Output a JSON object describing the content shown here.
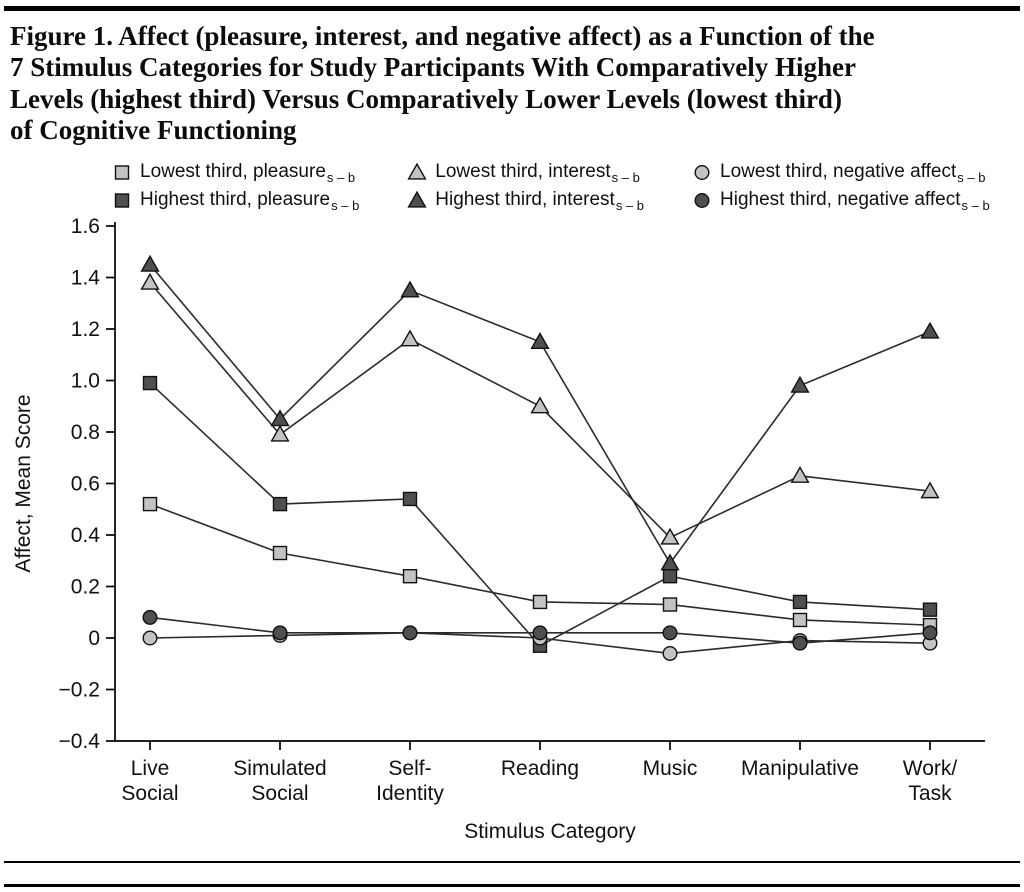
{
  "caption_lines": [
    "Figure 1. Affect (pleasure, interest, and negative affect) as a Function of the",
    "7 Stimulus Categories for Study Participants With Comparatively Higher",
    "Levels (highest third) Versus Comparatively Lower Levels (lowest third)",
    "of Cognitive Functioning"
  ],
  "chart_data": {
    "type": "line",
    "title": "Figure 1. Affect (pleasure, interest, and negative affect) as a Function of the 7 Stimulus Categories for Study Participants With Comparatively Higher Levels (highest third) Versus Comparatively Lower Levels (lowest third) of Cognitive Functioning",
    "xlabel": "Stimulus Category",
    "ylabel": "Affect, Mean Score",
    "ylim": [
      -0.4,
      1.6
    ],
    "ytick_step": 0.2,
    "grid": false,
    "legend_position": "top",
    "categories": [
      "Live Social",
      "Simulated Social",
      "Self-Identity",
      "Reading",
      "Music",
      "Manipulative",
      "Work/Task"
    ],
    "category_display_lines": [
      [
        "Live",
        "Social"
      ],
      [
        "Simulated",
        "Social"
      ],
      [
        "Self-",
        "Identity"
      ],
      [
        "Reading"
      ],
      [
        "Music"
      ],
      [
        "Manipulative"
      ],
      [
        "Work/",
        "Task"
      ]
    ],
    "yticks": [
      {
        "label": "1.6",
        "value": 1.6
      },
      {
        "label": "1.4",
        "value": 1.4
      },
      {
        "label": "1.2",
        "value": 1.2
      },
      {
        "label": "1.0",
        "value": 1.0
      },
      {
        "label": "0.8",
        "value": 0.8
      },
      {
        "label": "0.6",
        "value": 0.6
      },
      {
        "label": "0.4",
        "value": 0.4
      },
      {
        "label": "0.2",
        "value": 0.2
      },
      {
        "label": "0",
        "value": 0
      },
      {
        "label": "−0.2",
        "value": -0.2
      },
      {
        "label": "−0.4",
        "value": -0.4
      }
    ],
    "series": [
      {
        "name": "Lowest third, pleasure",
        "subscript": "s – b",
        "marker": "square",
        "shade": "light",
        "values": [
          0.52,
          0.33,
          0.24,
          0.14,
          0.13,
          0.07,
          0.05
        ]
      },
      {
        "name": "Highest third, pleasure",
        "subscript": "s – b",
        "marker": "square",
        "shade": "dark",
        "values": [
          0.99,
          0.52,
          0.54,
          -0.03,
          0.24,
          0.14,
          0.11
        ]
      },
      {
        "name": "Lowest third, interest",
        "subscript": "s – b",
        "marker": "triangle",
        "shade": "light",
        "values": [
          1.38,
          0.79,
          1.16,
          0.9,
          0.39,
          0.63,
          0.57
        ]
      },
      {
        "name": "Highest third, interest",
        "subscript": "s – b",
        "marker": "triangle",
        "shade": "dark",
        "values": [
          1.45,
          0.85,
          1.35,
          1.15,
          0.29,
          0.98,
          1.19
        ]
      },
      {
        "name": "Lowest third, negative affect",
        "subscript": "s – b",
        "marker": "circle",
        "shade": "light",
        "values": [
          0.0,
          0.01,
          0.02,
          0.0,
          -0.06,
          -0.01,
          -0.02
        ]
      },
      {
        "name": "Highest third, negative affect",
        "subscript": "s – b",
        "marker": "circle",
        "shade": "dark",
        "values": [
          0.08,
          0.02,
          0.02,
          0.02,
          0.02,
          -0.02,
          0.02
        ]
      }
    ],
    "colors": {
      "light": "#c3c3c3",
      "dark": "#4f4f4f",
      "line": "#2b2b2b",
      "marker_stroke": "#111111",
      "axis": "#000000"
    }
  }
}
